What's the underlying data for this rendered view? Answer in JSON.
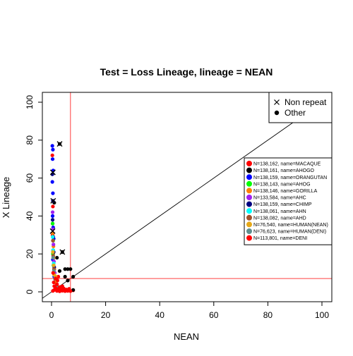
{
  "chart_data": {
    "type": "scatter",
    "title": "Test = Loss Lineage, lineage = NEAN",
    "xlabel": "NEAN",
    "ylabel": "X Lineage",
    "xlim": [
      0,
      100
    ],
    "ylim": [
      0,
      100
    ],
    "xticks": [
      0,
      20,
      40,
      60,
      80,
      100
    ],
    "yticks": [
      0,
      20,
      40,
      60,
      80,
      100
    ],
    "grid": false,
    "legend_placement": "top-right",
    "reference_lines": [
      {
        "kind": "diagonal",
        "slope": 1,
        "intercept": 0,
        "color": "#000000"
      },
      {
        "kind": "vertical",
        "x": 7,
        "color": "#ff4040"
      },
      {
        "kind": "horizontal",
        "y": 7,
        "color": "#ff4040"
      }
    ],
    "marker_legend": [
      {
        "label": "Non repeat",
        "marker": "x"
      },
      {
        "label": "Other",
        "marker": "dot"
      }
    ],
    "series": [
      {
        "name": "N=138,162, name=MACAQUE",
        "color": "#ff0000",
        "values": [
          [
            0.3,
            72
          ],
          [
            0.5,
            45
          ],
          [
            0.6,
            20
          ],
          [
            1,
            12
          ],
          [
            1.5,
            6
          ],
          [
            2,
            3
          ],
          [
            3,
            1
          ],
          [
            4,
            2
          ],
          [
            5,
            1
          ],
          [
            6,
            0.5
          ],
          [
            8,
            0.8
          ],
          [
            2.5,
            8
          ],
          [
            0.4,
            30
          ]
        ]
      },
      {
        "name": "N=138,161, name=AHOGO",
        "color": "#000000",
        "values": [
          [
            3,
            78
          ],
          [
            4,
            21
          ],
          [
            5,
            12
          ],
          [
            6,
            12
          ],
          [
            7,
            12
          ],
          [
            8,
            8
          ],
          [
            3,
            11
          ],
          [
            2,
            18
          ],
          [
            1,
            47
          ],
          [
            0.4,
            36
          ],
          [
            0.6,
            22
          ],
          [
            5,
            8
          ],
          [
            6,
            6
          ],
          [
            8,
            1
          ]
        ]
      },
      {
        "name": "N=138,159, name=ORANGUTAN",
        "color": "#0000ff",
        "values": [
          [
            0.3,
            77
          ],
          [
            0.5,
            75
          ],
          [
            0.4,
            70
          ],
          [
            0.6,
            64
          ],
          [
            0.3,
            58
          ],
          [
            0.5,
            52
          ],
          [
            0.4,
            40
          ],
          [
            0.6,
            34
          ],
          [
            0.8,
            28
          ],
          [
            0.5,
            17
          ],
          [
            1,
            8
          ]
        ]
      },
      {
        "name": "N=138,143, name=AHOG",
        "color": "#00ff00",
        "values": [
          [
            0.4,
            36
          ],
          [
            0.6,
            27
          ],
          [
            0.5,
            20
          ],
          [
            0.7,
            14
          ],
          [
            1,
            9
          ],
          [
            1.2,
            5
          ]
        ]
      },
      {
        "name": "N=138,146, name=GORILLA",
        "color": "#ff8000",
        "values": [
          [
            0.5,
            31
          ],
          [
            0.7,
            24
          ],
          [
            0.8,
            18
          ],
          [
            1,
            12
          ],
          [
            1.5,
            8
          ],
          [
            2,
            4
          ]
        ]
      },
      {
        "name": "N=133,584, name=AHC",
        "color": "#a020f0",
        "values": [
          [
            0.4,
            42
          ],
          [
            0.5,
            33
          ],
          [
            0.7,
            25
          ],
          [
            0.9,
            16
          ],
          [
            1.2,
            10
          ]
        ]
      },
      {
        "name": "N=138,159, name=CHIMP",
        "color": "#000080",
        "values": [
          [
            0.3,
            62
          ],
          [
            0.5,
            48
          ],
          [
            0.4,
            38
          ],
          [
            0.6,
            29
          ],
          [
            0.8,
            21
          ],
          [
            1,
            13
          ]
        ]
      },
      {
        "name": "N=138,061, name=AHN",
        "color": "#00ffff",
        "values": [
          [
            0.4,
            29
          ],
          [
            0.6,
            22
          ],
          [
            0.8,
            15
          ],
          [
            1,
            9
          ],
          [
            1.4,
            5
          ]
        ]
      },
      {
        "name": "N=138,082, name=AHD",
        "color": "#a0522d",
        "values": [
          [
            0.5,
            27
          ],
          [
            0.6,
            19
          ],
          [
            0.9,
            12
          ],
          [
            1.3,
            7
          ],
          [
            2,
            3
          ],
          [
            3,
            2
          ]
        ]
      },
      {
        "name": "N=76,540, name=HUMAN(NEAN)",
        "color": "#e6a817",
        "values": [
          [
            0.5,
            21
          ],
          [
            0.8,
            14
          ],
          [
            1,
            9
          ],
          [
            1.5,
            5
          ],
          [
            2.5,
            2
          ]
        ]
      },
      {
        "name": "N=76,623, name=HUMAN(DENI)",
        "color": "#5f8f8f",
        "values": [
          [
            0.6,
            18
          ],
          [
            0.9,
            11
          ],
          [
            1.2,
            7
          ],
          [
            2,
            3
          ]
        ]
      },
      {
        "name": "N=113,801, name=DENI",
        "color": "#ff0000",
        "values": [
          [
            0.5,
            0.5
          ],
          [
            1,
            1
          ],
          [
            1.5,
            2
          ],
          [
            2,
            0.5
          ],
          [
            2.5,
            1.5
          ],
          [
            3,
            0.3
          ],
          [
            3.5,
            1
          ],
          [
            4,
            0.6
          ],
          [
            4.5,
            1.8
          ],
          [
            5,
            0.4
          ],
          [
            5.5,
            1.2
          ],
          [
            6,
            0.7
          ],
          [
            6.5,
            1.6
          ],
          [
            7,
            0.4
          ],
          [
            1,
            3
          ],
          [
            2,
            4
          ],
          [
            3,
            2.5
          ],
          [
            4,
            3
          ],
          [
            0.8,
            5
          ],
          [
            1.5,
            7
          ],
          [
            0.6,
            10
          ],
          [
            2.2,
            6
          ]
        ]
      }
    ],
    "non_repeat_points": [
      [
        3,
        78
      ],
      [
        4,
        21
      ],
      [
        0.5,
        63
      ],
      [
        0.6,
        48
      ],
      [
        0.4,
        32
      ]
    ]
  }
}
